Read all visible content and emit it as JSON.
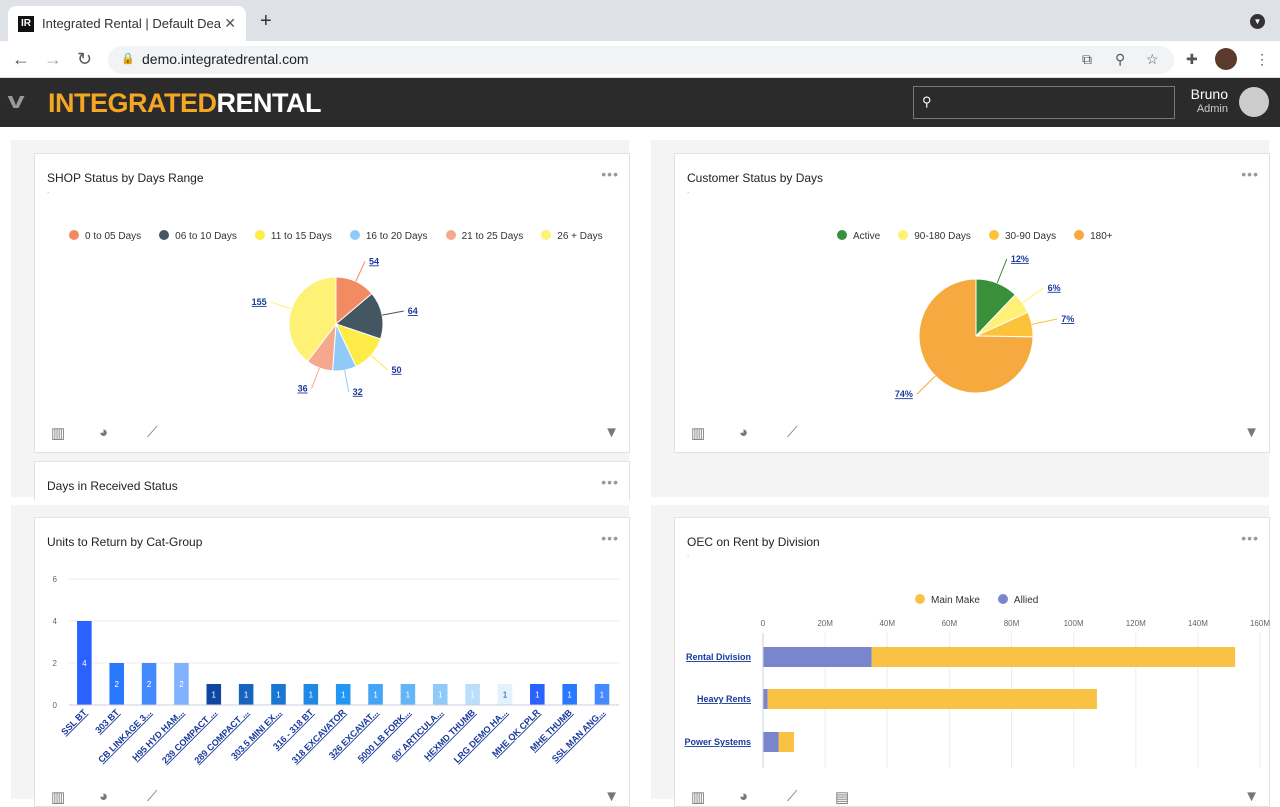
{
  "browser": {
    "tab_title": "Integrated Rental | Default Dea",
    "favicon": "IR",
    "url": "demo.integratedrental.com"
  },
  "header": {
    "logo_a": "INTEGRATED",
    "logo_b": "RENTAL",
    "user_name": "Bruno",
    "user_role": "Admin",
    "search_placeholder": ""
  },
  "cards": {
    "shop": {
      "title": "SHOP Status by Days Range",
      "dot": "."
    },
    "customer": {
      "title": "Customer Status by Days",
      "dot": "."
    },
    "received": {
      "title": "Days in Received Status"
    },
    "units": {
      "title": "Units to Return by Cat-Group"
    },
    "oec": {
      "title": "OEC on Rent by Division",
      "dot": "."
    }
  },
  "chart_data": [
    {
      "type": "pie",
      "title": "SHOP Status by Days Range",
      "legend": "top",
      "series": [
        {
          "name": "0 to 05 Days",
          "value": 54,
          "label": "54",
          "color": "#f28a62"
        },
        {
          "name": "06 to 10 Days",
          "value": 64,
          "label": "64",
          "color": "#445662"
        },
        {
          "name": "11 to 15 Days",
          "value": 50,
          "label": "50",
          "color": "#fdeb48"
        },
        {
          "name": "16 to 20 Days",
          "value": 32,
          "label": "32",
          "color": "#90caf9"
        },
        {
          "name": "21 to 25 Days",
          "value": 36,
          "label": "36",
          "color": "#f5a88e"
        },
        {
          "name": "26 + Days",
          "value": 155,
          "label": "155",
          "color": "#fff176"
        }
      ]
    },
    {
      "type": "pie",
      "title": "Customer Status by Days",
      "legend": "top",
      "series": [
        {
          "name": "Active",
          "value": 12,
          "label": "12%",
          "color": "#3a8f3a"
        },
        {
          "name": "90-180 Days",
          "value": 6,
          "label": "6%",
          "color": "#fff176"
        },
        {
          "name": "30-90 Days",
          "value": 7,
          "label": "7%",
          "color": "#fbc23a"
        },
        {
          "name": "180+",
          "value": 74,
          "label": "74%",
          "color": "#f5a93e"
        }
      ]
    },
    {
      "type": "bar",
      "title": "Units to Return by Cat-Group",
      "ylim": [
        0,
        6
      ],
      "yticks": [
        0,
        2,
        4,
        6
      ],
      "categories": [
        "SSL BT",
        "303 BT",
        "CB LINKAGE 3...",
        "H95 HYD HAM...",
        "239 COMPACT ...",
        "289 COMPACT ...",
        "303.5 MINI EX...",
        "316 - 318 BT",
        "318 EXCAVATOR",
        "326 EXCAVAT...",
        "5000 LB FORK...",
        "60' ARTICULA...",
        "HEXMD THUMB",
        "LRG DEMO HA...",
        "MHE QK CPLR",
        "MHE THUMB",
        "SSL MAN ANG..."
      ],
      "values": [
        4,
        2,
        2,
        2,
        1,
        1,
        1,
        1,
        1,
        1,
        1,
        1,
        1,
        1,
        1,
        1,
        1
      ],
      "colors": [
        "#2962ff",
        "#2979ff",
        "#448aff",
        "#82b1ff",
        "#0d47a1",
        "#1565c0",
        "#1976d2",
        "#1e88e5",
        "#2196f3",
        "#42a5f5",
        "#64b5f6",
        "#90caf9",
        "#bbdefb",
        "#e3f2fd",
        "#2962ff",
        "#2979ff",
        "#448aff"
      ]
    },
    {
      "type": "bar",
      "orientation": "horizontal",
      "stacked": true,
      "title": "OEC on Rent by Division",
      "legend": "top",
      "xlim": [
        0,
        160
      ],
      "xticks": [
        "0",
        "20M",
        "40M",
        "60M",
        "80M",
        "100M",
        "120M",
        "140M",
        "160M"
      ],
      "categories": [
        "Rental Division",
        "Heavy Rents",
        "Power Systems"
      ],
      "series": [
        {
          "name": "Main Make",
          "values": [
            117,
            106,
            5
          ],
          "color": "#f9c244"
        },
        {
          "name": "Allied",
          "values": [
            35,
            1.5,
            5
          ],
          "color": "#7986cb"
        }
      ]
    }
  ]
}
